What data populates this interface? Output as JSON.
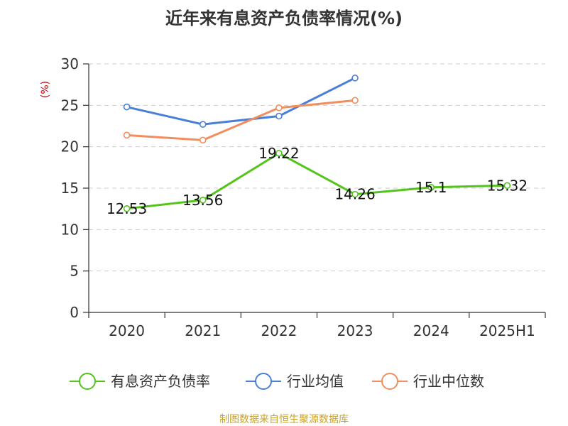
{
  "chart_data": {
    "type": "line",
    "title": "近年来有息资产负债率情况(%)",
    "y_unit": "(%)",
    "categories": [
      "2020",
      "2021",
      "2022",
      "2023",
      "2024",
      "2025H1"
    ],
    "ylim": [
      0,
      30
    ],
    "yticks": [
      0,
      5,
      10,
      15,
      20,
      25,
      30
    ],
    "grid": true,
    "legend_position": "bottom",
    "series": [
      {
        "name": "有息资产负债率",
        "color": "#52c41a",
        "values": [
          12.53,
          13.56,
          19.22,
          14.26,
          15.1,
          15.32
        ],
        "labels": [
          "12.53",
          "13.56",
          "19.22",
          "14.26",
          "15.1",
          "15.32"
        ],
        "show_labels": true
      },
      {
        "name": "行业均值",
        "color": "#4a7fd8",
        "values": [
          24.8,
          22.7,
          23.7,
          28.3,
          null,
          null
        ],
        "show_labels": false
      },
      {
        "name": "行业中位数",
        "color": "#f28e5e",
        "values": [
          21.4,
          20.8,
          24.7,
          25.6,
          null,
          null
        ],
        "show_labels": false
      }
    ],
    "source": "制图数据来自恒生聚源数据库"
  }
}
